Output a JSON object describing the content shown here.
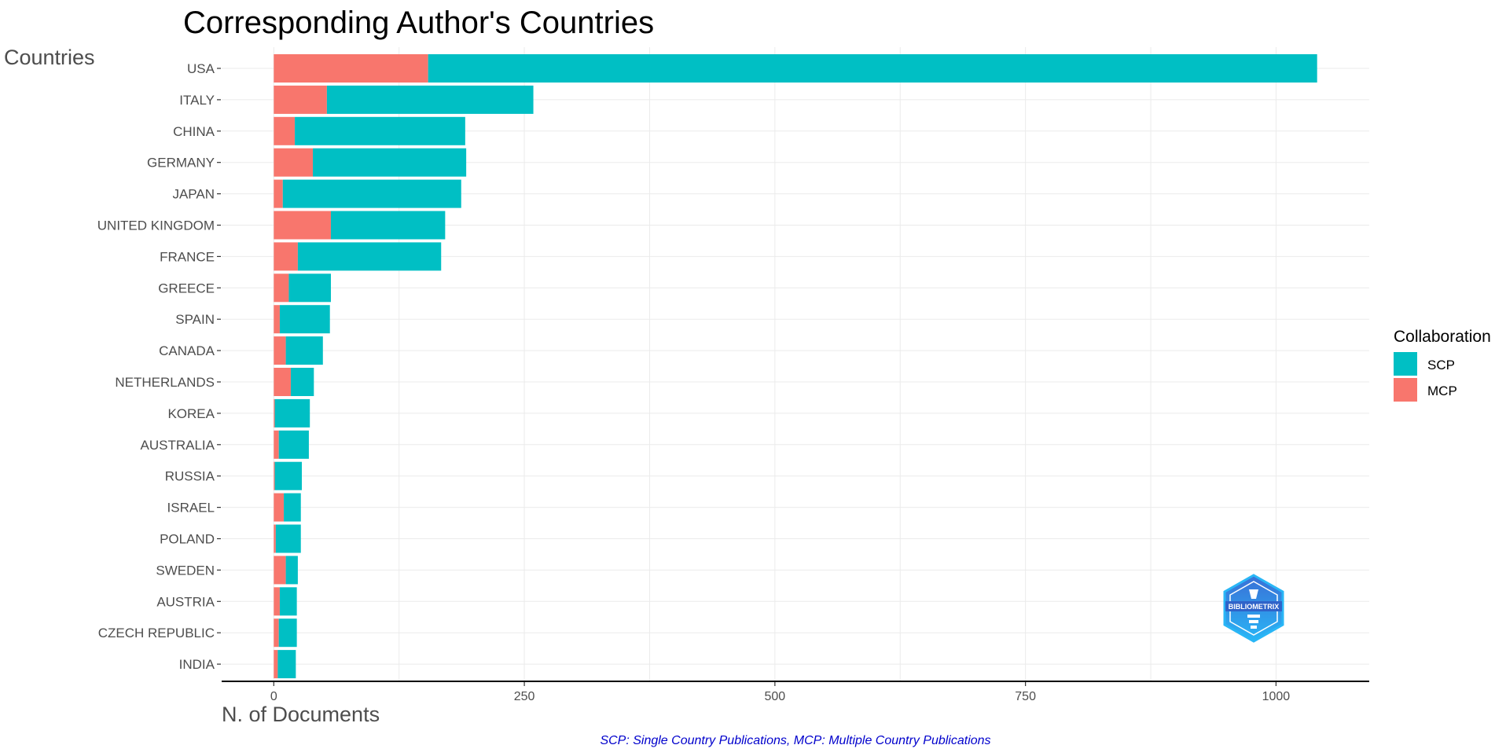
{
  "chart_data": {
    "type": "bar",
    "orientation": "horizontal",
    "stacked": true,
    "title": "Corresponding Author's Countries",
    "xlabel": "N. of Documents",
    "ylabel": "Countries",
    "categories": [
      "USA",
      "ITALY",
      "CHINA",
      "GERMANY",
      "JAPAN",
      "UNITED KINGDOM",
      "FRANCE",
      "GREECE",
      "SPAIN",
      "CANADA",
      "NETHERLANDS",
      "KOREA",
      "AUSTRALIA",
      "RUSSIA",
      "ISRAEL",
      "POLAND",
      "SWEDEN",
      "AUSTRIA",
      "CZECH REPUBLIC",
      "INDIA"
    ],
    "series": [
      {
        "name": "MCP",
        "color": "#F8766D",
        "values": [
          154,
          53,
          21,
          39,
          9,
          57,
          24,
          15,
          6,
          12,
          17,
          1,
          5,
          1,
          10,
          2,
          12,
          6,
          5,
          4
        ]
      },
      {
        "name": "SCP",
        "color": "#00BFC4",
        "values": [
          887,
          206,
          170,
          153,
          178,
          114,
          143,
          42,
          50,
          37,
          23,
          35,
          30,
          27,
          17,
          25,
          12,
          17,
          18,
          18
        ]
      }
    ],
    "xticks": [
      0,
      250,
      500,
      750,
      1000
    ],
    "xlim": [
      -52,
      1093
    ],
    "grid": true,
    "legend": {
      "title": "Collaboration",
      "placement": "right",
      "entries": [
        {
          "label": "SCP",
          "color": "#00BFC4"
        },
        {
          "label": "MCP",
          "color": "#F8766D"
        }
      ]
    },
    "caption": "SCP: Single Country Publications, MCP: Multiple Country Publications"
  },
  "logo": {
    "text": "BIBLIOMETRIX",
    "colors": [
      "#3a6fd6",
      "#29b6f6"
    ]
  }
}
